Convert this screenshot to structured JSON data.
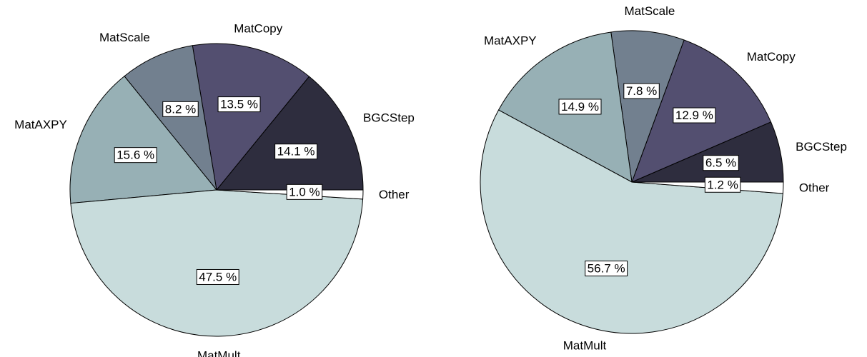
{
  "chart_data": [
    {
      "type": "pie",
      "categories": [
        "BGCStep",
        "MatCopy",
        "MatScale",
        "MatAXPY",
        "MatMult",
        "Other"
      ],
      "values": [
        14.1,
        13.5,
        8.2,
        15.6,
        47.5,
        1.0
      ],
      "value_labels": [
        "14.1 %",
        "13.5 %",
        "8.2 %",
        "15.6 %",
        "47.5 %",
        "1.0 %"
      ],
      "colors": [
        "#2e2d3e",
        "#534f70",
        "#72808f",
        "#97b0b5",
        "#c8dcdc",
        "#ffffff"
      ]
    },
    {
      "type": "pie",
      "categories": [
        "BGCStep",
        "MatCopy",
        "MatScale",
        "MatAXPY",
        "MatMult",
        "Other"
      ],
      "values": [
        6.5,
        12.9,
        7.8,
        14.9,
        56.7,
        1.2
      ],
      "value_labels": [
        "6.5 %",
        "12.9 %",
        "7.8 %",
        "14.9 %",
        "56.7 %",
        "1.2 %"
      ],
      "colors": [
        "#2e2d3e",
        "#534f70",
        "#72808f",
        "#97b0b5",
        "#c8dcdc",
        "#ffffff"
      ]
    }
  ]
}
